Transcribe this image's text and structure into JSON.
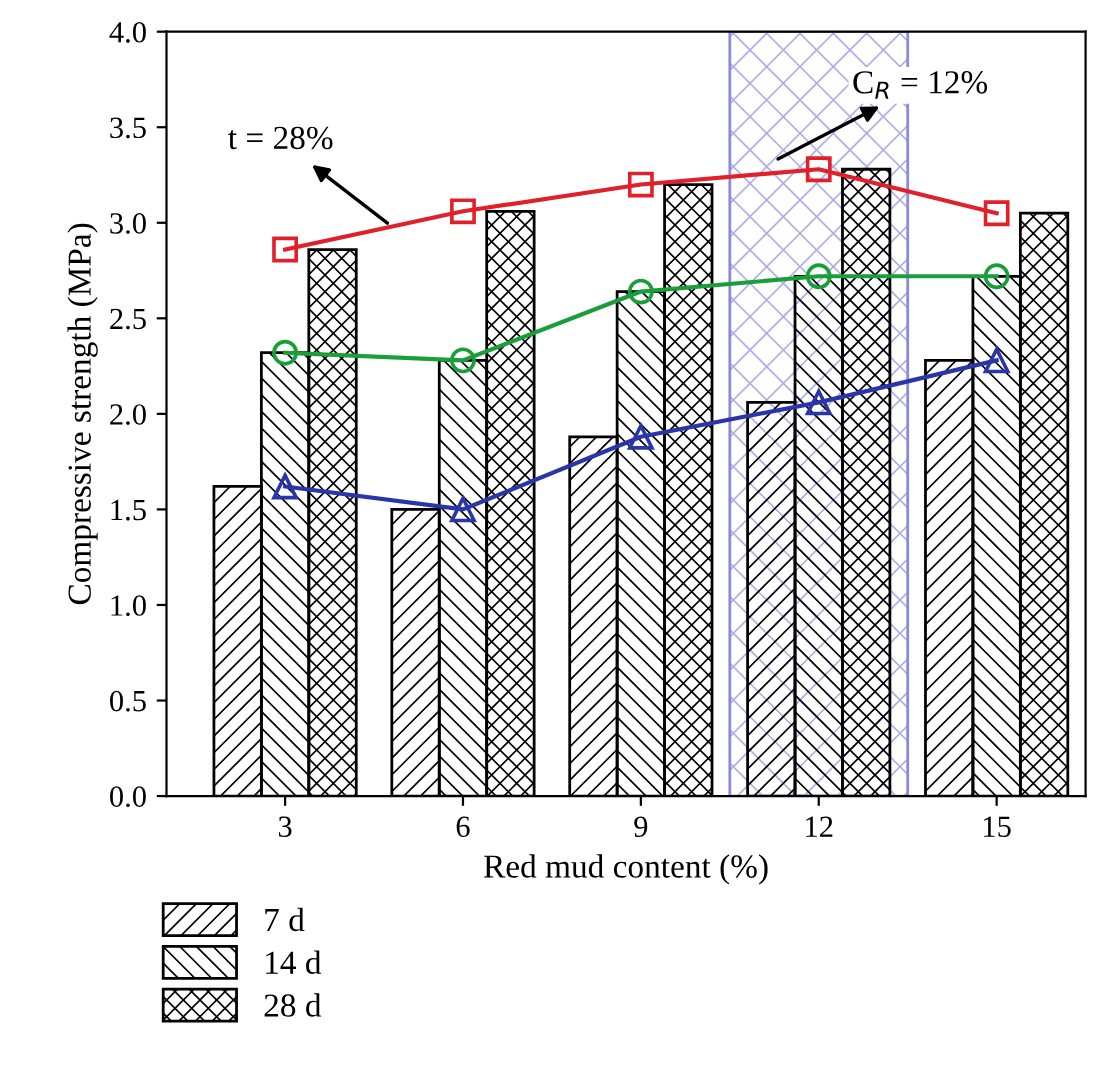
{
  "chart_data": {
    "type": "bar",
    "xlabel": "Red mud content (%)",
    "ylabel": "Compressive strength (MPa)",
    "xlim": [
      1,
      16.5
    ],
    "xticks": [
      3,
      6,
      9,
      12,
      15
    ],
    "ylim": [
      0,
      4
    ],
    "yticks": [
      {
        "value": 0,
        "label": "0.0"
      },
      0.5,
      {
        "value": 1,
        "label": "1.0"
      },
      1.5,
      {
        "value": 2,
        "label": "2.0"
      },
      2.5,
      {
        "value": 3,
        "label": "3.0"
      },
      3.5,
      {
        "value": 4,
        "label": "4.0"
      }
    ],
    "legend": "bottom left",
    "grid": false,
    "series": [
      {
        "name": "7 d",
        "color": "#000000",
        "x": [
          3,
          6,
          9,
          12,
          15
        ],
        "values": [
          1.62,
          1.5,
          1.88,
          2.06,
          2.28
        ]
      },
      {
        "name": "14 d",
        "color": "#000000",
        "x": [
          3,
          6,
          9,
          12,
          15
        ],
        "values": [
          2.32,
          2.28,
          2.64,
          2.72,
          2.72
        ]
      },
      {
        "name": "28 d",
        "color": "#000000",
        "x": [
          3,
          6,
          9,
          12,
          15
        ],
        "values": [
          2.86,
          3.06,
          3.2,
          3.28,
          3.05
        ]
      },
      {
        "type": "line",
        "marker": "triangle",
        "color": "#2a35a8",
        "x": [
          3,
          6,
          9,
          12,
          15
        ],
        "values": [
          1.62,
          1.5,
          1.88,
          2.06,
          2.28
        ]
      },
      {
        "type": "line",
        "marker": "circle",
        "color": "#1a9e3a",
        "x": [
          3,
          6,
          9,
          12,
          15
        ],
        "values": [
          2.32,
          2.28,
          2.64,
          2.72,
          2.72
        ]
      },
      {
        "type": "line",
        "marker": "square",
        "color": "#e0202a",
        "x": [
          3,
          6,
          9,
          12,
          15
        ],
        "values": [
          2.86,
          3.06,
          3.2,
          3.28,
          3.05
        ]
      }
    ],
    "bands": [
      {
        "axis": "x",
        "from": 10.5,
        "to": 13.5,
        "color": "#5a5ad0"
      }
    ],
    "annotations": [
      {
        "text": "t = 28%",
        "x": 4.8,
        "y": 2.98
      },
      "C$_{R}$ = 12%"
    ]
  }
}
